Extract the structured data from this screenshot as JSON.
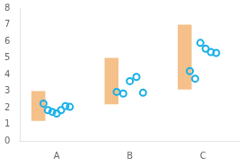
{
  "chart_data": {
    "type": "bar",
    "categories": [
      "A",
      "B",
      "C"
    ],
    "series": [
      {
        "type": "bar",
        "color": "#f5c08a",
        "values": [
          [
            1.2,
            3.0
          ],
          [
            2.2,
            5.0
          ],
          [
            3.1,
            7.0
          ]
        ]
      },
      {
        "type": "scatter",
        "color": "#1ab0e8",
        "marker": "circle",
        "values": [
          [
            2.25,
            1.85,
            1.75,
            1.65,
            1.85,
            2.1,
            2.05
          ],
          [
            2.95,
            2.85,
            3.6,
            3.85,
            2.9
          ],
          [
            4.2,
            3.75,
            5.9,
            5.55,
            5.35,
            5.3
          ]
        ]
      }
    ],
    "ylim": [
      0,
      8
    ],
    "yticks": [
      0,
      1,
      2,
      3,
      4,
      5,
      6,
      7,
      8
    ],
    "grid": false
  }
}
